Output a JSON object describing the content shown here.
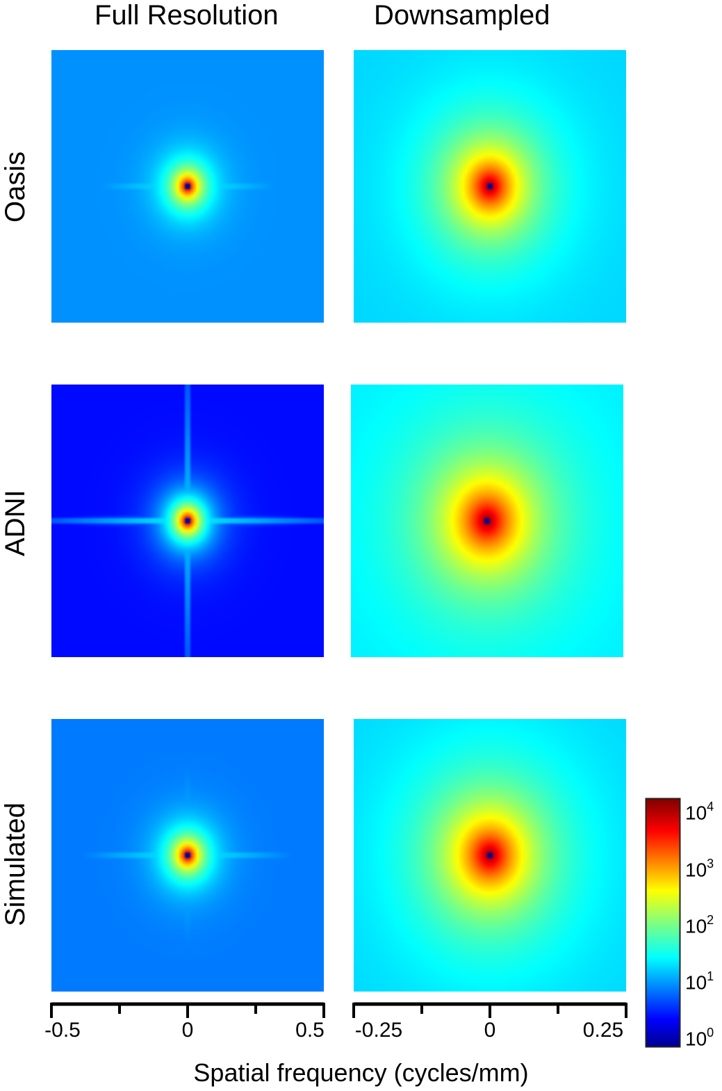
{
  "figure": {
    "columns": [
      "Full Resolution",
      "Downsampled"
    ],
    "rows": [
      "Oasis",
      "ADNI",
      "Simulated"
    ],
    "xlabel": "Spatial frequency (cycles/mm)"
  },
  "axes": {
    "full": {
      "ticks": [
        "-0.5",
        "0",
        "0.5"
      ],
      "range": [
        -0.5,
        0.5
      ]
    },
    "down": {
      "ticks": [
        "-0.25",
        "0",
        "0.25"
      ],
      "range": [
        -0.25,
        0.25
      ]
    }
  },
  "colorbar": {
    "scale": "log",
    "colormap": "jet",
    "ticks": [
      {
        "base": "10",
        "exp": "0"
      },
      {
        "base": "10",
        "exp": "1"
      },
      {
        "base": "10",
        "exp": "2"
      },
      {
        "base": "10",
        "exp": "3"
      },
      {
        "base": "10",
        "exp": "4"
      }
    ]
  },
  "chart_data": {
    "type": "heatmap",
    "description_free": true,
    "x_axis": "Spatial frequency (cycles/mm)",
    "colorbar_range_log10": [
      0,
      4.5
    ],
    "panels": [
      {
        "row": "Oasis",
        "column": "Full Resolution",
        "xlim": [
          -0.5,
          0.5
        ],
        "ylim": [
          -0.5,
          0.5
        ],
        "peak_log10": 4.5,
        "background_log10": 1.2,
        "core_decay": 8.5,
        "axis_line_log10": 2.0
      },
      {
        "row": "Oasis",
        "column": "Downsampled",
        "xlim": [
          -0.25,
          0.25
        ],
        "ylim": [
          -0.25,
          0.25
        ],
        "peak_log10": 4.5,
        "background_log10": 1.5,
        "core_decay": 3.6,
        "axis_line_log10": 2.1
      },
      {
        "row": "ADNI",
        "column": "Full Resolution",
        "xlim": [
          -0.5,
          0.5
        ],
        "ylim": [
          -0.5,
          0.5
        ],
        "peak_log10": 4.5,
        "background_log10": 0.6,
        "core_decay": 7.5,
        "axis_line_log10": 2.0
      },
      {
        "row": "ADNI",
        "column": "Downsampled",
        "xlim": [
          -0.25,
          0.25
        ],
        "ylim": [
          -0.25,
          0.25
        ],
        "peak_log10": 4.5,
        "background_log10": 1.6,
        "core_decay": 3.0,
        "axis_line_log10": 2.2
      },
      {
        "row": "Simulated",
        "column": "Full Resolution",
        "xlim": [
          -0.5,
          0.5
        ],
        "ylim": [
          -0.5,
          0.5
        ],
        "peak_log10": 4.5,
        "background_log10": 1.1,
        "core_decay": 8.0,
        "axis_line_log10": 2.0
      },
      {
        "row": "Simulated",
        "column": "Downsampled",
        "xlim": [
          -0.25,
          0.25
        ],
        "ylim": [
          -0.25,
          0.25
        ],
        "peak_log10": 4.5,
        "background_log10": 1.5,
        "core_decay": 3.0,
        "axis_line_log10": 2.2
      }
    ]
  }
}
